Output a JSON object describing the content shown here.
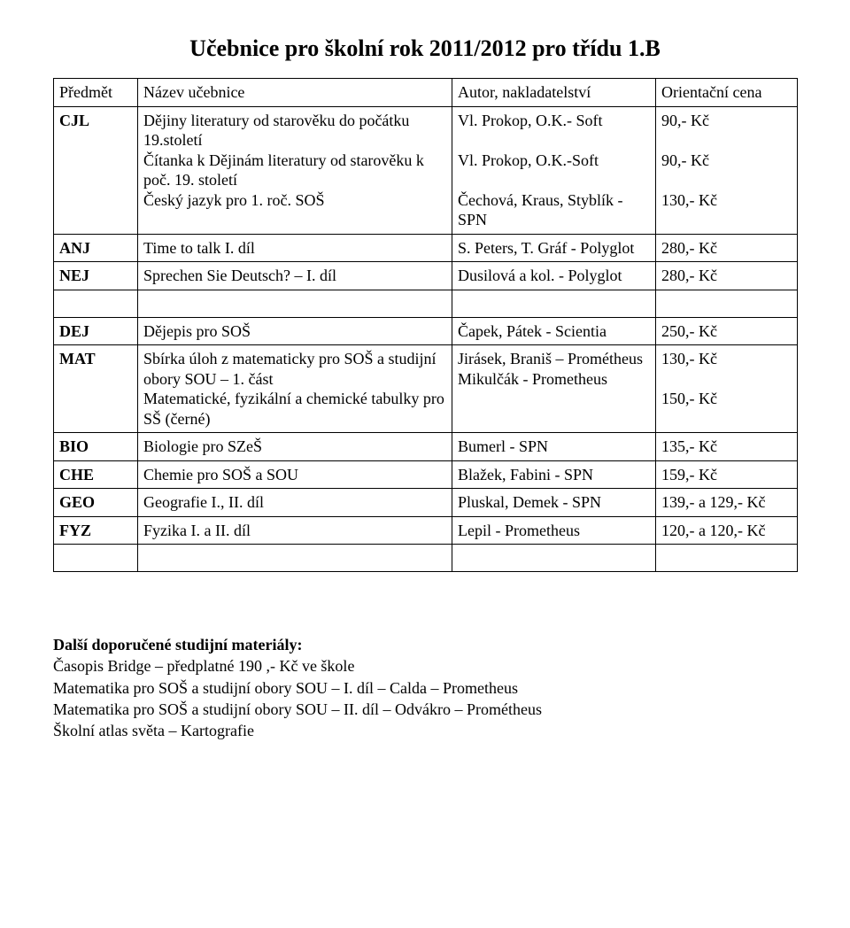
{
  "title": "Učebnice pro školní rok 2011/2012 pro třídu 1.B",
  "header": {
    "subject": "Předmět",
    "name": "Název učebnice",
    "author": "Autor, nakladatelství",
    "price": "Orientační cena"
  },
  "cjl": {
    "code": "CJL",
    "line1_name": "Dějiny literatury od starověku do počátku 19.století",
    "line1_author": "Vl. Prokop, O.K.- Soft",
    "line1_price": "90,- Kč",
    "line2_name": "Čítanka k Dějinám literatury od starověku k poč. 19. století",
    "line2_author": "Vl. Prokop, O.K.-Soft",
    "line2_price": "90,- Kč",
    "line3_name": "Český jazyk pro 1. roč. SOŠ",
    "line3_author": "Čechová, Kraus, Styblík - SPN",
    "line3_price": "130,- Kč"
  },
  "anj": {
    "code": "ANJ",
    "name": "Time to talk I. díl",
    "author": "S. Peters, T. Gráf - Polyglot",
    "price": "280,- Kč"
  },
  "nej": {
    "code": "NEJ",
    "name": "Sprechen Sie Deutsch? – I. díl",
    "author": "Dusilová a kol. - Polyglot",
    "price": "280,- Kč"
  },
  "dej": {
    "code": "DEJ",
    "name": "Dějepis pro SOŠ",
    "author": "Čapek, Pátek -  Scientia",
    "price": "250,- Kč"
  },
  "mat": {
    "code": "MAT",
    "line1_name": "Sbírka úloh z matematicky pro SOŠ a studijní obory SOU – 1. část",
    "line1_author": "Jirásek, Braniš – Prométheus",
    "line1_price": "130,- Kč",
    "line2_name": "Matematické, fyzikální a chemické tabulky pro SŠ (černé)",
    "line2_author": "Mikulčák - Prometheus",
    "line2_price": "150,- Kč"
  },
  "bio": {
    "code": "BIO",
    "name": "Biologie pro SZeŠ",
    "author": "Bumerl - SPN",
    "price": "135,- Kč"
  },
  "che": {
    "code": "CHE",
    "name": "Chemie pro SOŠ a SOU",
    "author": "Blažek, Fabini - SPN",
    "price": "159,- Kč"
  },
  "geo": {
    "code": "GEO",
    "name": "Geografie I., II. díl",
    "author": "Pluskal, Demek - SPN",
    "price": "139,- a 129,- Kč"
  },
  "fyz": {
    "code": "FYZ",
    "name": "Fyzika I. a II. díl",
    "author": "Lepil - Prometheus",
    "price": "120,- a 120,- Kč"
  },
  "footer": {
    "heading": "Další doporučené studijní materiály:",
    "l1": "Časopis Bridge – předplatné 190 ,- Kč ve škole",
    "l2": "Matematika pro SOŠ a studijní obory SOU – I. díl – Calda – Prometheus",
    "l3": "Matematika pro SOŠ a studijní obory SOU – II. díl – Odvákro – Prométheus",
    "l4": "Školní atlas světa – Kartografie"
  }
}
